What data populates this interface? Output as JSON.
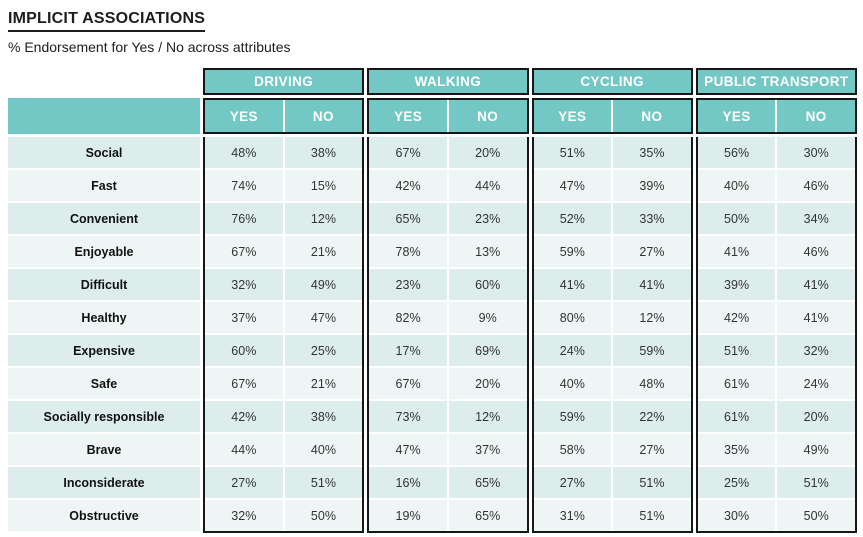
{
  "page": {
    "title": "IMPLICIT ASSOCIATIONS",
    "subtitle": "% Endorsement for Yes / No across attributes"
  },
  "chart_data": {
    "type": "table",
    "title": "IMPLICIT ASSOCIATIONS",
    "subtitle": "% Endorsement for Yes / No across attributes",
    "column_groups": [
      "DRIVING",
      "WALKING",
      "CYCLING",
      "PUBLIC TRANSPORT"
    ],
    "sub_columns": [
      "YES",
      "NO"
    ],
    "rows": [
      {
        "label": "Social",
        "values": [
          "48%",
          "38%",
          "67%",
          "20%",
          "51%",
          "35%",
          "56%",
          "30%"
        ]
      },
      {
        "label": "Fast",
        "values": [
          "74%",
          "15%",
          "42%",
          "44%",
          "47%",
          "39%",
          "40%",
          "46%"
        ]
      },
      {
        "label": "Convenient",
        "values": [
          "76%",
          "12%",
          "65%",
          "23%",
          "52%",
          "33%",
          "50%",
          "34%"
        ]
      },
      {
        "label": "Enjoyable",
        "values": [
          "67%",
          "21%",
          "78%",
          "13%",
          "59%",
          "27%",
          "41%",
          "46%"
        ]
      },
      {
        "label": "Difficult",
        "values": [
          "32%",
          "49%",
          "23%",
          "60%",
          "41%",
          "41%",
          "39%",
          "41%"
        ]
      },
      {
        "label": "Healthy",
        "values": [
          "37%",
          "47%",
          "82%",
          "9%",
          "80%",
          "12%",
          "42%",
          "41%"
        ]
      },
      {
        "label": "Expensive",
        "values": [
          "60%",
          "25%",
          "17%",
          "69%",
          "24%",
          "59%",
          "51%",
          "32%"
        ]
      },
      {
        "label": "Safe",
        "values": [
          "67%",
          "21%",
          "67%",
          "20%",
          "40%",
          "48%",
          "61%",
          "24%"
        ]
      },
      {
        "label": "Socially responsible",
        "values": [
          "42%",
          "38%",
          "73%",
          "12%",
          "59%",
          "22%",
          "61%",
          "20%"
        ]
      },
      {
        "label": "Brave",
        "values": [
          "44%",
          "40%",
          "47%",
          "37%",
          "58%",
          "27%",
          "35%",
          "49%"
        ]
      },
      {
        "label": "Inconsiderate",
        "values": [
          "27%",
          "51%",
          "16%",
          "65%",
          "27%",
          "51%",
          "25%",
          "51%"
        ]
      },
      {
        "label": "Obstructive",
        "values": [
          "32%",
          "50%",
          "19%",
          "65%",
          "31%",
          "51%",
          "30%",
          "50%"
        ]
      }
    ]
  },
  "colors": {
    "teal": "#73C8C6",
    "row_odd": "#DCEDEC",
    "row_even": "#EEF6F5",
    "border": "#161616",
    "header_text": "#FFFFFF",
    "title_text": "#1D1D1B",
    "data_text": "#333333"
  }
}
